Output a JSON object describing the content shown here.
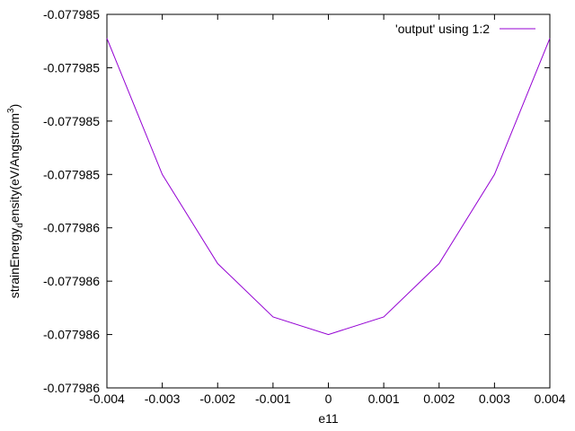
{
  "chart_data": {
    "type": "line",
    "title": "",
    "xlabel": "e11",
    "ylabel": {
      "prefix": "strainEnergy",
      "subscript": "d",
      "middle": "ensity(eV/Angstrom",
      "superscript": "3",
      "suffix": ")"
    },
    "xlim": [
      -0.004,
      0.004
    ],
    "ylim": [
      0,
      7
    ],
    "x_ticks": [
      -0.004,
      -0.003,
      -0.002,
      -0.001,
      0,
      0.001,
      0.002,
      0.003,
      0.004
    ],
    "x_tick_labels": [
      "-0.004",
      "-0.003",
      "-0.002",
      "-0.001",
      "0",
      "0.001",
      "0.002",
      "0.003",
      "0.004"
    ],
    "y_ticks": [
      0,
      1,
      2,
      3,
      4,
      5,
      6,
      7
    ],
    "y_tick_labels": [
      "-0.077986",
      "-0.077986",
      "-0.077986",
      "-0.077986",
      "-0.077985",
      "-0.077985",
      "-0.077985",
      "-0.077985"
    ],
    "grid": false,
    "legend_position": "top-right",
    "series": [
      {
        "name": "'output' using 1:2",
        "color": "#9400d3",
        "x": [
          -0.004,
          -0.003,
          -0.002,
          -0.001,
          0,
          0.001,
          0.002,
          0.003,
          0.004
        ],
        "y": [
          6.55,
          4.0,
          2.33,
          1.33,
          1.0,
          1.33,
          2.33,
          4.0,
          6.55
        ]
      }
    ]
  }
}
